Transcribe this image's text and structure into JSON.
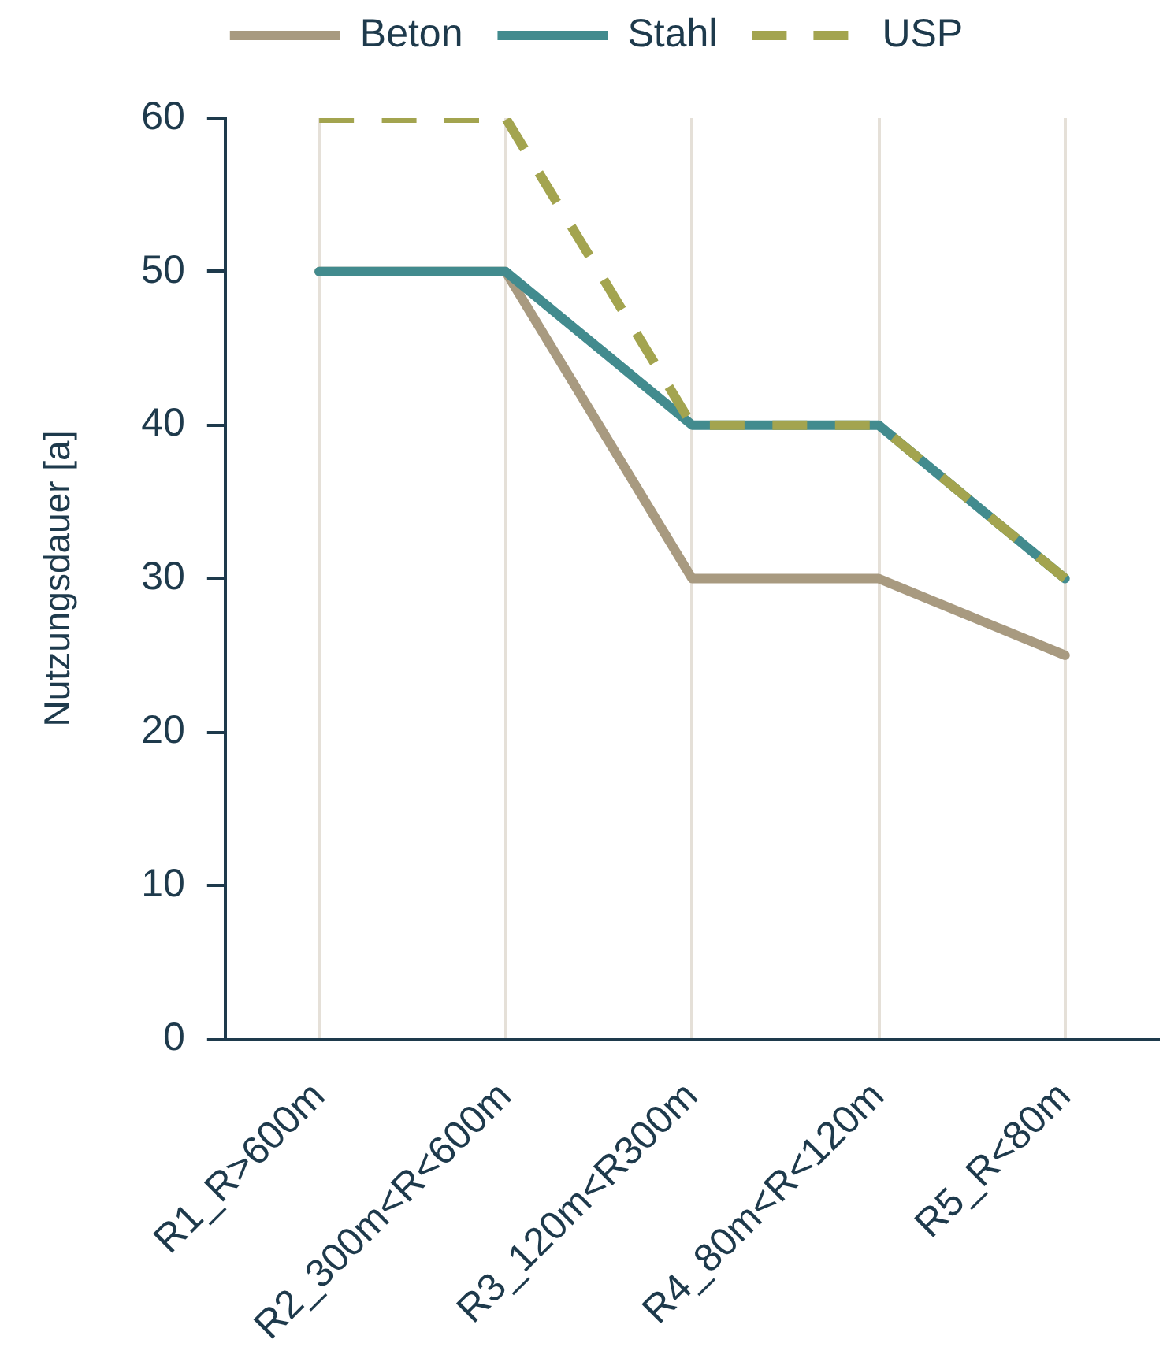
{
  "chart_data": {
    "type": "line",
    "categories": [
      "R1_R>600m",
      "R2_300m<R<600m",
      "R3_120m<R300m",
      "R4_80m<R<120m",
      "R5_R<80m"
    ],
    "series": [
      {
        "name": "Beton",
        "color": "#a89a80",
        "values": [
          50,
          50,
          30,
          30,
          25
        ],
        "line_style": "solid"
      },
      {
        "name": "Stahl",
        "color": "#428b8e",
        "values": [
          50,
          50,
          40,
          40,
          30
        ],
        "line_style": "solid"
      },
      {
        "name": "USP",
        "color": "#a3a44f",
        "values": [
          60,
          60,
          40,
          40,
          30
        ],
        "line_style": "dashed"
      }
    ],
    "ylabel": "Nutzungsdauer [a]",
    "ylim": [
      0,
      60
    ],
    "yticks": [
      0,
      10,
      20,
      30,
      40,
      50,
      60
    ],
    "grid": "x",
    "legend": "top",
    "marker": "none"
  }
}
